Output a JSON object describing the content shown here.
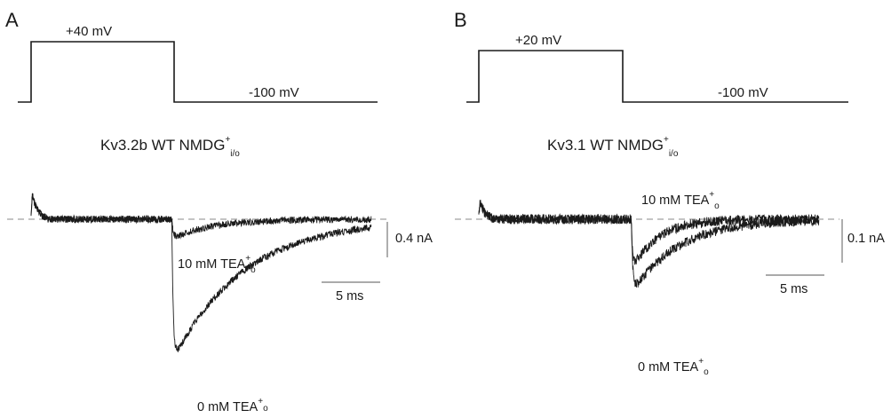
{
  "panels": [
    {
      "letter": "A",
      "protocol": {
        "step_label": "+40 mV",
        "hold_label": "-100 mV"
      },
      "title": {
        "main": "Kv3.2b WT  NMDG",
        "sup": "+",
        "sub": "i/o"
      },
      "scale": {
        "current_label": "0.4 nA",
        "time_label": "5 ms"
      },
      "trace_labels": [
        {
          "main": "10 mM TEA",
          "sup": "+",
          "sub": "o"
        },
        {
          "main": "0 mM TEA",
          "sup": "+",
          "sub": "o"
        }
      ]
    },
    {
      "letter": "B",
      "protocol": {
        "step_label": "+20 mV",
        "hold_label": "-100 mV"
      },
      "title": {
        "main": "Kv3.1 WT  NMDG",
        "sup": "+",
        "sub": "i/o"
      },
      "scale": {
        "current_label": "0.1 nA",
        "time_label": "5 ms"
      },
      "trace_labels": [
        {
          "main": "10 mM TEA",
          "sup": "+",
          "sub": "o"
        },
        {
          "main": "0 mM TEA",
          "sup": "+",
          "sub": "o"
        }
      ]
    }
  ],
  "chart_data": [
    {
      "type": "line",
      "title": "Kv3.2b WT NMDG+ i/o",
      "voltage_protocol": {
        "holding_mV": -100,
        "step_mV": 40,
        "tail_mV": -100
      },
      "scale_bars": {
        "current_nA": 0.4,
        "time_ms": 5
      },
      "x_unit": "ms",
      "y_unit": "nA",
      "step_duration_ms": 12,
      "record_duration_ms": 29,
      "series": [
        {
          "name": "10 mM TEA+o",
          "tail_peak_nA": -0.22,
          "tail_tau_ms": 3.5
        },
        {
          "name": "0 mM TEA+o",
          "tail_peak_nA": -1.62,
          "tail_tau_ms": 6.0
        }
      ]
    },
    {
      "type": "line",
      "title": "Kv3.1 WT NMDG+ i/o",
      "voltage_protocol": {
        "holding_mV": -100,
        "step_mV": 20,
        "tail_mV": -100
      },
      "scale_bars": {
        "current_nA": 0.1,
        "time_ms": 5
      },
      "x_unit": "ms",
      "y_unit": "nA",
      "step_duration_ms": 13,
      "record_duration_ms": 29,
      "series": [
        {
          "name": "10 mM TEA+o",
          "tail_peak_nA": -0.12,
          "tail_tau_ms": 2.2
        },
        {
          "name": "0 mM TEA+o",
          "tail_peak_nA": -0.17,
          "tail_tau_ms": 4.0
        }
      ]
    }
  ]
}
